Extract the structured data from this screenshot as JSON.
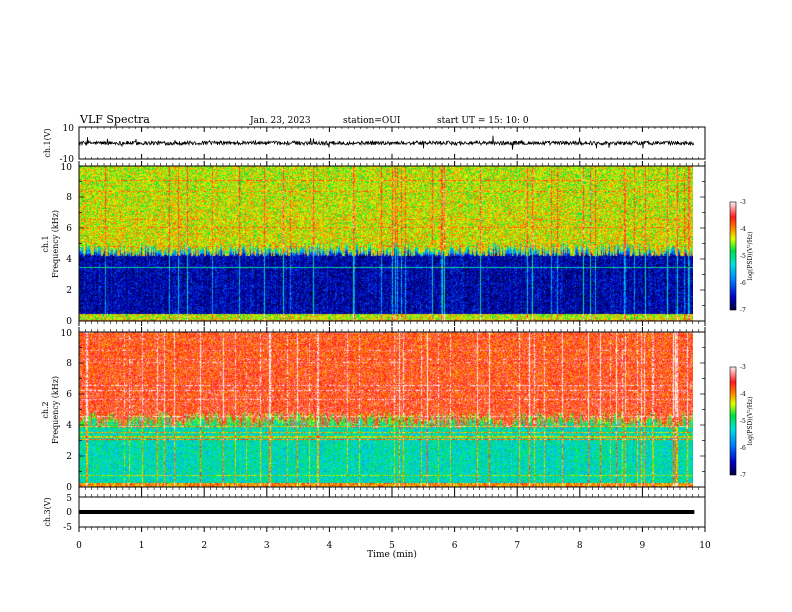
{
  "header": {
    "title": "VLF Spectra",
    "date": "Jan. 23, 2023",
    "station": "station=OUI",
    "start": "start  UT =   15: 10: 0"
  },
  "chart_data": [
    {
      "type": "line",
      "ylabel": "ch.1(V)",
      "ylim": [
        -10,
        10
      ],
      "y_ticks": [
        "10",
        "-10"
      ],
      "xlim": [
        0,
        10
      ],
      "description_level": 0
    },
    {
      "type": "heatmap",
      "ylabel_top": "ch.1",
      "ylabel": "Frequency  (kHz)",
      "ylim": [
        0,
        10
      ],
      "y_ticks": [
        "0",
        "2",
        "4",
        "6",
        "8",
        "10"
      ],
      "xlim": [
        0,
        10
      ],
      "data_end_min": 9.83,
      "colorbar": {
        "label": "log(PSD)(V²/Hz)",
        "range": [
          -7,
          -3
        ],
        "ticks": [
          "-3",
          "-4",
          "-5",
          "-6",
          "-7"
        ]
      },
      "profile": {
        "quiet_band_khz": [
          0.5,
          4.2
        ],
        "noisy_above_khz": 4.5,
        "level_low": -6.6,
        "level_mid": -5.0,
        "level_high": -4.3
      }
    },
    {
      "type": "heatmap",
      "ylabel_top": "ch.2",
      "ylabel": "Frequency  (kHz)",
      "ylim": [
        0,
        10
      ],
      "y_ticks": [
        "0",
        "2",
        "4",
        "6",
        "8",
        "10"
      ],
      "xlim": [
        0,
        10
      ],
      "data_end_min": 9.83,
      "colorbar": {
        "label": "log(PSD)(V²/Hz)",
        "range": [
          -7,
          -3
        ],
        "ticks": [
          "-3",
          "-4",
          "-5",
          "-6",
          "-7"
        ]
      },
      "profile": {
        "quiet_band_khz": [
          0.3,
          3.8
        ],
        "noisy_above_khz": 4.3,
        "level_low": -5.2,
        "level_mid": -4.6,
        "level_high": -3.6
      }
    },
    {
      "type": "line",
      "ylabel": "ch.3(V)",
      "ylim": [
        -5,
        5
      ],
      "y_ticks": [
        "5",
        "0",
        "-5"
      ],
      "xlim": [
        0,
        10
      ],
      "x_ticks": [
        "0",
        "1",
        "2",
        "3",
        "4",
        "5",
        "6",
        "7",
        "8",
        "9",
        "10"
      ],
      "xlabel": "Time  (min)",
      "constant_value": 0
    }
  ]
}
